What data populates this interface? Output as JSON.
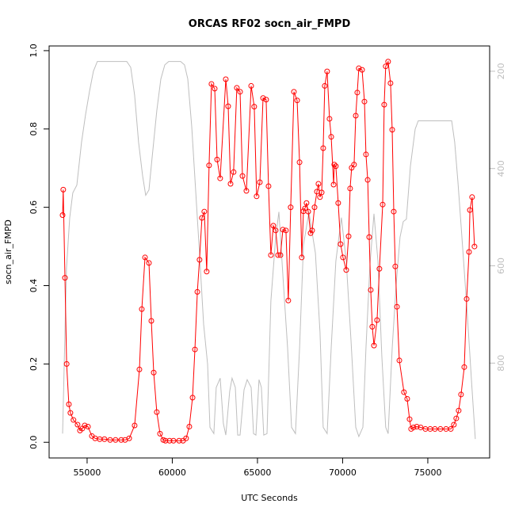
{
  "chart_data": {
    "type": "line",
    "title": "ORCAS RF02 socn_air_FMPD",
    "xlabel": "UTC Seconds",
    "ylabel": "socn_air_FMPD",
    "xlim": [
      52770,
      78630
    ],
    "xticks": [
      55000,
      60000,
      65000,
      70000,
      75000
    ],
    "ylim": [
      -0.04,
      1.012
    ],
    "yticks": [
      {
        "value": 0,
        "label": "0.0"
      },
      0.2,
      0.4,
      0.6,
      0.8,
      {
        "value": 1,
        "label": "1.0"
      }
    ],
    "y2lim": [
      995,
      148
    ],
    "y2ticks": [
      200,
      400,
      600,
      800
    ],
    "y2color": "#bebebe",
    "series": [
      {
        "color": "#bebebe",
        "axis": "y2",
        "markers": false,
        "x": [
          53560,
          53790,
          53980,
          54160,
          54400,
          54670,
          54910,
          55140,
          55370,
          55600,
          55930,
          56860,
          57330,
          57560,
          57790,
          58020,
          58260,
          58440,
          58630,
          58810,
          59090,
          59330,
          59560,
          59790,
          60490,
          60720,
          60910,
          61140,
          61370,
          61600,
          61840,
          62070,
          62210,
          62440,
          62580,
          62810,
          63000,
          63140,
          63370,
          63510,
          63700,
          63840,
          63980,
          64210,
          64400,
          64630,
          64770,
          64910,
          65090,
          65230,
          65370,
          65560,
          65790,
          66070,
          66260,
          66530,
          66770,
          67000,
          67230,
          67470,
          67700,
          68020,
          68400,
          68670,
          68860,
          69090,
          69330,
          69600,
          69930,
          70210,
          70490,
          70770,
          70950,
          71190,
          71370,
          71600,
          71840,
          72070,
          72300,
          72530,
          72670,
          72910,
          73140,
          73370,
          73560,
          73740,
          73980,
          74260,
          74440,
          74770,
          75930,
          76400,
          76580,
          76770,
          77000,
          77330,
          77560,
          77790
        ],
        "values": [
          945,
          606,
          501,
          450,
          434,
          346,
          289,
          241,
          200,
          180,
          180,
          180,
          180,
          192,
          249,
          346,
          415,
          455,
          444,
          379,
          281,
          216,
          187,
          180,
          180,
          187,
          216,
          314,
          444,
          574,
          720,
          802,
          932,
          945,
          850,
          831,
          924,
          948,
          858,
          831,
          850,
          948,
          948,
          855,
          834,
          850,
          945,
          948,
          834,
          850,
          948,
          945,
          672,
          541,
          489,
          639,
          769,
          932,
          945,
          769,
          558,
          489,
          574,
          737,
          932,
          945,
          769,
          590,
          501,
          590,
          753,
          932,
          951,
          932,
          769,
          598,
          493,
          590,
          785,
          932,
          945,
          769,
          639,
          541,
          509,
          504,
          395,
          319,
          302,
          302,
          302,
          302,
          346,
          428,
          541,
          704,
          834,
          956
        ]
      },
      {
        "color": "#ff0000",
        "axis": "y",
        "markers": true,
        "x": [
          53560,
          53600,
          53700,
          53800,
          53930,
          54020,
          54200,
          54440,
          54580,
          54720,
          54860,
          55050,
          55280,
          55470,
          55740,
          56020,
          56350,
          56670,
          57000,
          57230,
          57470,
          57790,
          58070,
          58210,
          58400,
          58630,
          58770,
          58910,
          59090,
          59280,
          59470,
          59600,
          59840,
          60070,
          60400,
          60630,
          60810,
          61000,
          61190,
          61330,
          61470,
          61600,
          61740,
          61880,
          62020,
          62160,
          62300,
          62490,
          62630,
          62810,
          63140,
          63280,
          63420,
          63600,
          63790,
          63980,
          64120,
          64350,
          64630,
          64810,
          64950,
          65140,
          65330,
          65510,
          65650,
          65790,
          65930,
          66070,
          66210,
          66350,
          66490,
          66670,
          66810,
          66950,
          67140,
          67330,
          67470,
          67600,
          67700,
          67790,
          67880,
          67980,
          68120,
          68210,
          68350,
          68490,
          68580,
          68670,
          68770,
          68860,
          68950,
          69090,
          69230,
          69330,
          69470,
          69510,
          69600,
          69740,
          69880,
          70020,
          70210,
          70350,
          70440,
          70530,
          70670,
          70770,
          70860,
          70950,
          71140,
          71280,
          71370,
          71470,
          71560,
          71650,
          71740,
          71840,
          72020,
          72160,
          72350,
          72440,
          72530,
          72670,
          72810,
          72910,
          73000,
          73090,
          73190,
          73330,
          73600,
          73790,
          73930,
          74020,
          74160,
          74350,
          74580,
          74860,
          75140,
          75420,
          75740,
          76070,
          76350,
          76530,
          76670,
          76810,
          76950,
          77140,
          77280,
          77420,
          77470,
          77600,
          77740
        ],
        "values": [
          0.58,
          0.645,
          0.42,
          0.2,
          0.097,
          0.075,
          0.057,
          0.045,
          0.03,
          0.035,
          0.043,
          0.04,
          0.016,
          0.01,
          0.008,
          0.008,
          0.006,
          0.006,
          0.006,
          0.006,
          0.01,
          0.043,
          0.186,
          0.34,
          0.472,
          0.458,
          0.31,
          0.178,
          0.077,
          0.022,
          0.006,
          0.004,
          0.004,
          0.004,
          0.004,
          0.004,
          0.01,
          0.04,
          0.114,
          0.237,
          0.384,
          0.466,
          0.573,
          0.589,
          0.436,
          0.707,
          0.915,
          0.903,
          0.722,
          0.674,
          0.927,
          0.858,
          0.66,
          0.69,
          0.905,
          0.895,
          0.68,
          0.642,
          0.91,
          0.857,
          0.628,
          0.664,
          0.879,
          0.875,
          0.654,
          0.478,
          0.553,
          0.541,
          0.478,
          0.478,
          0.543,
          0.541,
          0.362,
          0.6,
          0.895,
          0.873,
          0.715,
          0.472,
          0.59,
          0.597,
          0.611,
          0.589,
          0.534,
          0.541,
          0.6,
          0.64,
          0.66,
          0.626,
          0.638,
          0.751,
          0.91,
          0.947,
          0.826,
          0.78,
          0.658,
          0.709,
          0.705,
          0.611,
          0.506,
          0.472,
          0.44,
          0.526,
          0.648,
          0.701,
          0.709,
          0.834,
          0.893,
          0.955,
          0.951,
          0.87,
          0.735,
          0.67,
          0.524,
          0.389,
          0.295,
          0.247,
          0.312,
          0.443,
          0.607,
          0.862,
          0.96,
          0.972,
          0.917,
          0.798,
          0.589,
          0.449,
          0.346,
          0.209,
          0.128,
          0.111,
          0.059,
          0.034,
          0.038,
          0.04,
          0.038,
          0.034,
          0.034,
          0.034,
          0.034,
          0.034,
          0.034,
          0.045,
          0.061,
          0.081,
          0.122,
          0.192,
          0.366,
          0.486,
          0.593,
          0.626,
          0.5
        ]
      }
    ]
  }
}
